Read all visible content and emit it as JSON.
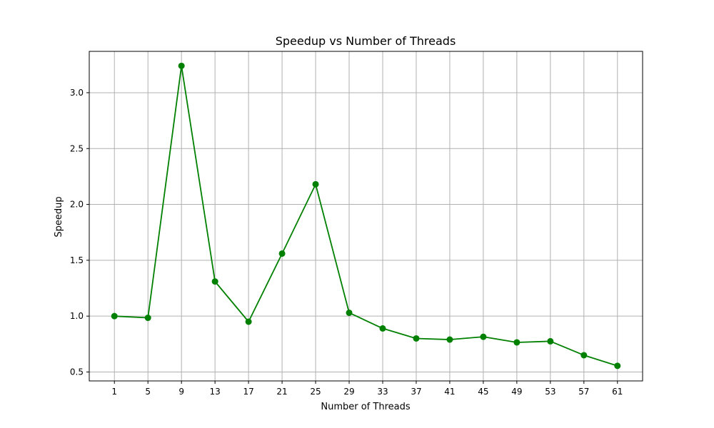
{
  "chart_data": {
    "type": "line",
    "title": "Speedup vs Number of Threads",
    "xlabel": "Number of Threads",
    "ylabel": "Speedup",
    "x": [
      1,
      5,
      9,
      13,
      17,
      21,
      25,
      29,
      33,
      37,
      41,
      45,
      49,
      53,
      57,
      61
    ],
    "series": [
      {
        "values": [
          1.0,
          0.985,
          3.24,
          1.31,
          0.95,
          1.56,
          2.18,
          1.03,
          0.89,
          0.8,
          0.79,
          0.815,
          0.765,
          0.775,
          0.65,
          0.555
        ],
        "color": "#008000",
        "marker": "circle"
      }
    ],
    "xticks": [
      "1",
      "5",
      "9",
      "13",
      "17",
      "21",
      "25",
      "29",
      "33",
      "37",
      "41",
      "45",
      "49",
      "53",
      "57",
      "61"
    ],
    "yticks": [
      0.5,
      1.0,
      1.5,
      2.0,
      2.5,
      3.0
    ],
    "ytick_labels": [
      "0.5",
      "1.0",
      "1.5",
      "2.0",
      "2.5",
      "3.0"
    ],
    "xlim": [
      -2,
      64
    ],
    "ylim": [
      0.42,
      3.37
    ],
    "grid": true,
    "colors": {
      "line": "#008000",
      "grid": "#b0b0b0",
      "axes": "#000000"
    }
  }
}
